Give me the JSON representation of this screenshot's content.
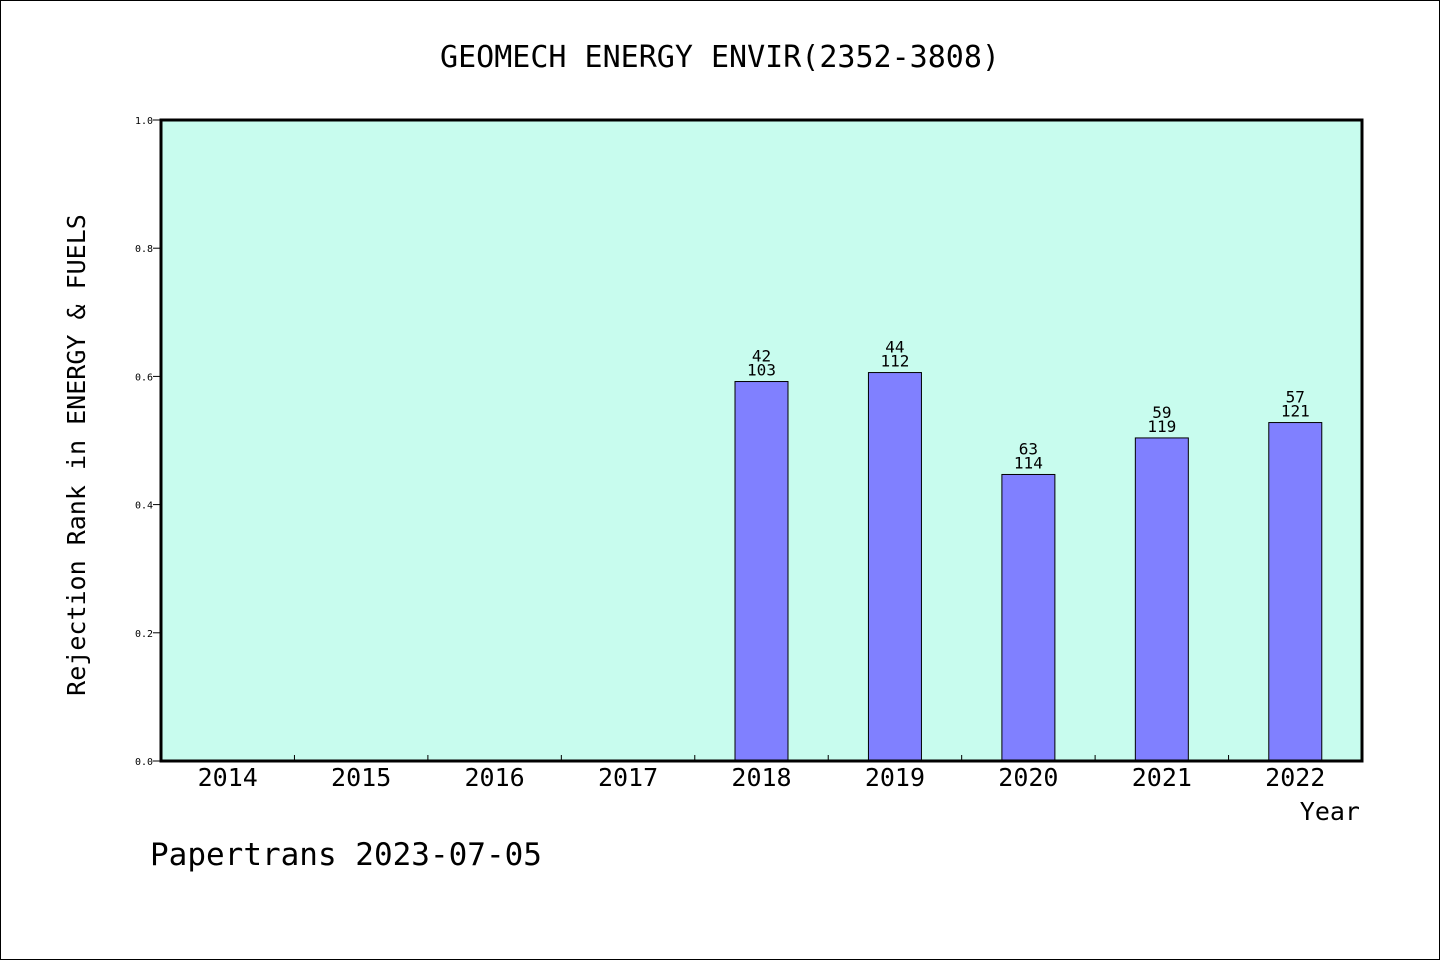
{
  "chart_data": {
    "type": "bar",
    "title": "GEOMECH ENERGY ENVIR(2352-3808)",
    "xlabel": "Year",
    "ylabel": "Rejection Rank in ENERGY & FUELS",
    "footer": "Papertrans 2023-07-05",
    "categories": [
      "2014",
      "2015",
      "2016",
      "2017",
      "2018",
      "2019",
      "2020",
      "2021",
      "2022"
    ],
    "values": [
      null,
      null,
      null,
      null,
      0.592,
      0.606,
      0.447,
      0.504,
      0.528
    ],
    "label_top": [
      null,
      null,
      null,
      null,
      "42",
      "44",
      "63",
      "59",
      "57"
    ],
    "label_bottom": [
      null,
      null,
      null,
      null,
      "103",
      "112",
      "114",
      "119",
      "121"
    ],
    "y_ticks": [
      "0.0",
      "0.2",
      "0.4",
      "0.6",
      "0.8",
      "1.0"
    ],
    "ylim": [
      0,
      1.0
    ],
    "grid": false,
    "colors": {
      "plot_background": "#c8fcee",
      "bar_fill": "#8080ff",
      "bar_stroke": "#000000"
    }
  }
}
